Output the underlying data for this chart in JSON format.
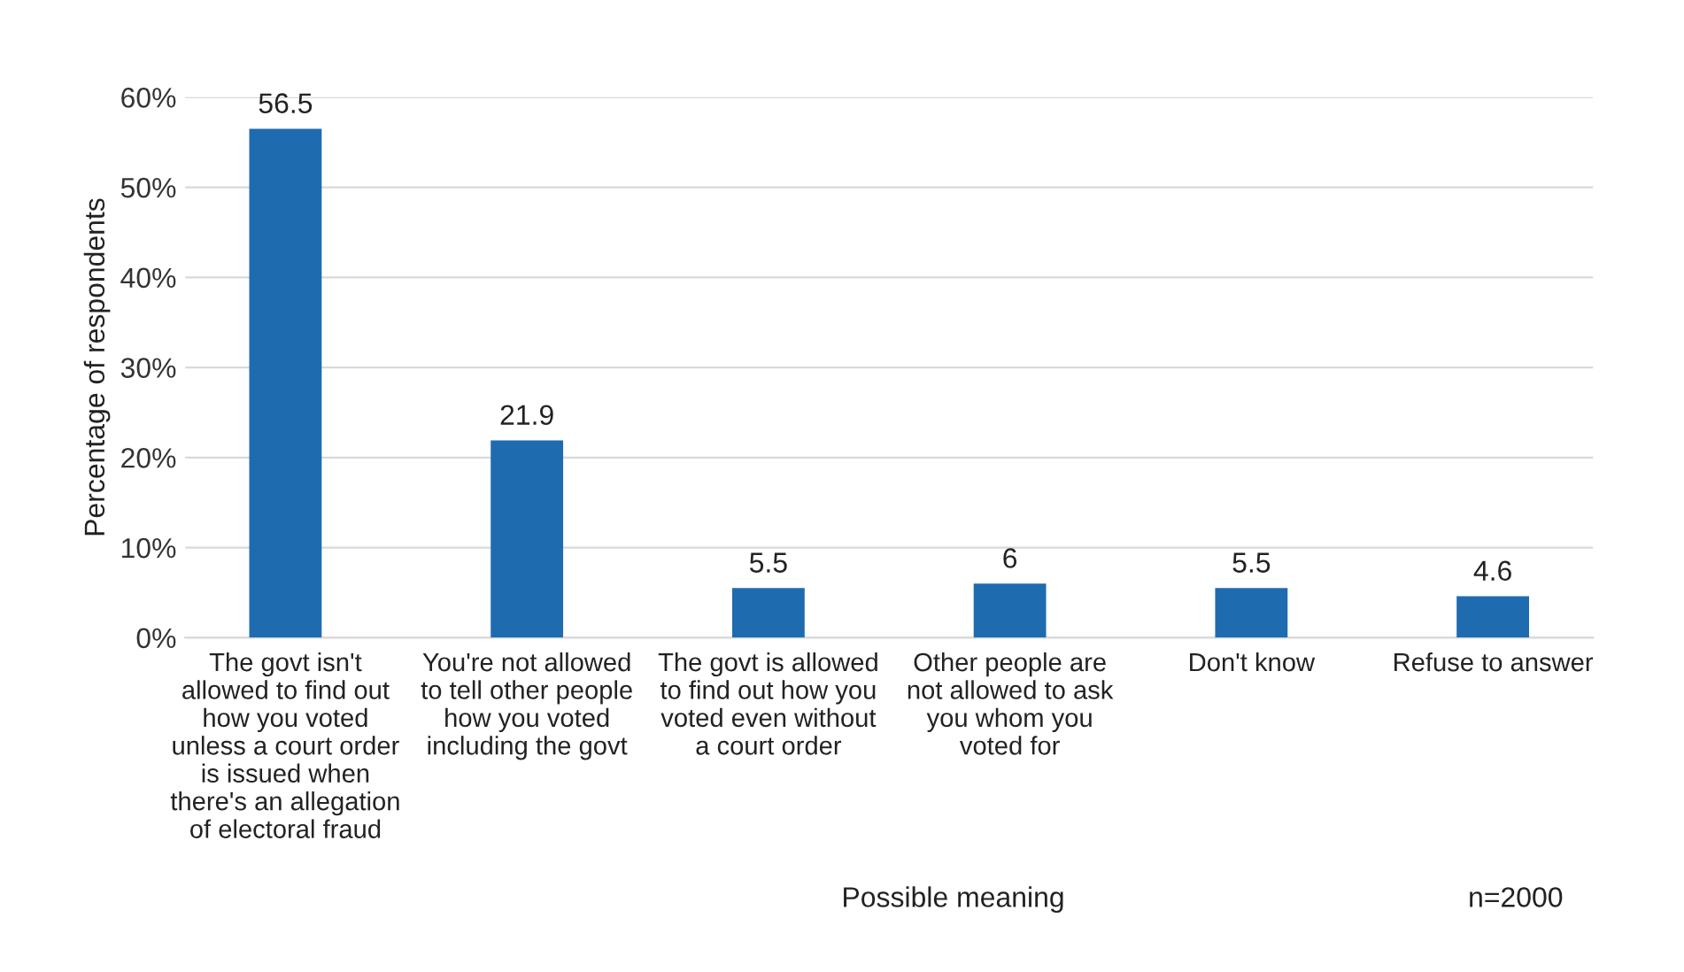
{
  "chart_data": {
    "type": "bar",
    "categories": [
      "The govt isn't\nallowed to find out\nhow you voted\nunless a court order\nis issued when\nthere's an allegation\nof electoral fraud",
      "You're not allowed\nto tell other people\nhow you voted\nincluding the govt",
      "The govt is allowed\nto find out how you\nvoted even without\na court order",
      "Other people are\nnot allowed to ask\nyou whom you\nvoted for",
      "Don't know",
      "Refuse to answer"
    ],
    "values": [
      56.5,
      21.9,
      5.5,
      6,
      5.5,
      4.6
    ],
    "color": "#1f6bb0",
    "ylabel": "Percentage of respondents",
    "xlabel": "Possible meaning",
    "annotations": [
      "n=2000"
    ],
    "ylim": [
      0,
      60
    ],
    "yticks": [
      {
        "value": 0,
        "label": "0%"
      },
      {
        "value": 10,
        "label": "10%"
      },
      {
        "value": 20,
        "label": "20%"
      },
      {
        "value": 30,
        "label": "30%"
      },
      {
        "value": 40,
        "label": "40%"
      },
      {
        "value": 50,
        "label": "50%"
      },
      {
        "value": 60,
        "label": "60%"
      }
    ],
    "grid": "y",
    "data_labels": true
  }
}
